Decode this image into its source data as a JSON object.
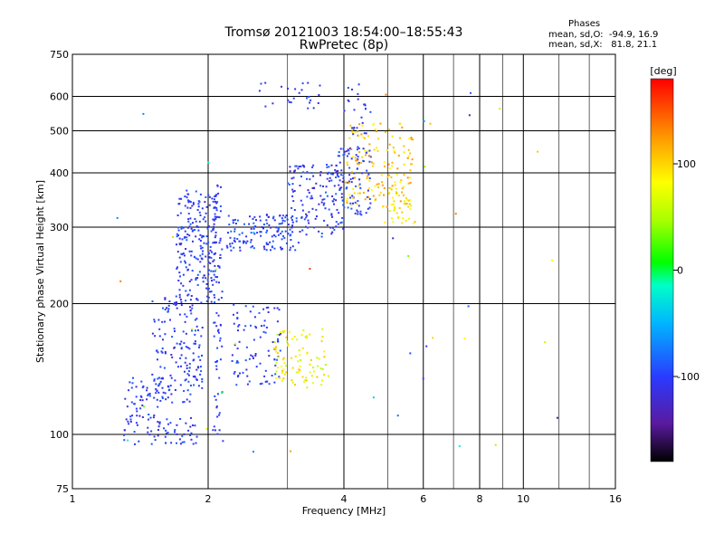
{
  "chart_data": {
    "type": "scatter",
    "title": "Tromsø 20121003 18:54:00–18:55:43",
    "subtitle": "RwPretec (8p)",
    "xlabel": "Frequency [MHz]",
    "ylabel": "Stationary phase Virtual Height [km]",
    "x_scale": "log",
    "y_scale": "log",
    "xlim": [
      1,
      16
    ],
    "ylim": [
      75,
      750
    ],
    "x_ticks": [
      1,
      2,
      4,
      6,
      8,
      10,
      16
    ],
    "x_tick_labels": [
      "1",
      "2",
      "4",
      "6",
      "8",
      "10",
      "16"
    ],
    "y_ticks": [
      75,
      100,
      200,
      300,
      400,
      500,
      600,
      750
    ],
    "y_tick_labels": [
      "75",
      "100",
      "200",
      "300",
      "400",
      "500",
      "600",
      "750"
    ],
    "grid": true,
    "colorbar": {
      "label": "[deg]",
      "ticks": [
        100,
        0,
        -100
      ],
      "tick_labels": [
        "100",
        "0",
        "-100"
      ],
      "range": [
        -180,
        180
      ]
    },
    "stats": {
      "title": "Phases",
      "line_o": "mean, sd,O:  -94.9, 16.9",
      "line_x": "mean, sd,X:   81.8, 21.1"
    },
    "clusters": [
      {
        "f": [
          1.3,
          1.55
        ],
        "h": [
          95,
          135
        ],
        "phase": [
          -120,
          -90
        ],
        "n": 70
      },
      {
        "f": [
          1.5,
          1.95
        ],
        "h": [
          118,
          210
        ],
        "phase": [
          -120,
          -85
        ],
        "n": 170
      },
      {
        "f": [
          1.7,
          2.1
        ],
        "h": [
          200,
          365
        ],
        "phase": [
          -120,
          -85
        ],
        "n": 220
      },
      {
        "f": [
          1.55,
          1.9
        ],
        "h": [
          95,
          110
        ],
        "phase": [
          -120,
          -85
        ],
        "n": 40
      },
      {
        "f": [
          2.05,
          2.15
        ],
        "h": [
          100,
          380
        ],
        "phase": [
          -120,
          -90
        ],
        "n": 80
      },
      {
        "f": [
          2.25,
          2.9
        ],
        "h": [
          130,
          200
        ],
        "phase": [
          -120,
          -80
        ],
        "n": 90
      },
      {
        "f": [
          2.2,
          3.2
        ],
        "h": [
          265,
          320
        ],
        "phase": [
          -120,
          -80
        ],
        "n": 140
      },
      {
        "f": [
          3.0,
          4.0
        ],
        "h": [
          285,
          420
        ],
        "phase": [
          -130,
          -80
        ],
        "n": 140
      },
      {
        "f": [
          3.8,
          4.6
        ],
        "h": [
          320,
          460
        ],
        "phase": [
          -120,
          -80
        ],
        "n": 90
      },
      {
        "f": [
          4.0,
          4.6
        ],
        "h": [
          480,
          650
        ],
        "phase": [
          -120,
          -90
        ],
        "n": 25
      },
      {
        "f": [
          2.6,
          3.6
        ],
        "h": [
          560,
          650
        ],
        "phase": [
          -120,
          -90
        ],
        "n": 25
      },
      {
        "f": [
          2.8,
          3.7
        ],
        "h": [
          128,
          175
        ],
        "phase": [
          50,
          110
        ],
        "n": 90
      },
      {
        "f": [
          4.0,
          5.7
        ],
        "h": [
          330,
          520
        ],
        "phase": [
          80,
          130
        ],
        "n": 150
      },
      {
        "f": [
          5.0,
          5.8
        ],
        "h": [
          300,
          370
        ],
        "phase": [
          60,
          120
        ],
        "n": 30
      },
      {
        "f": [
          1.25,
          12.0
        ],
        "h": [
          90,
          620
        ],
        "phase": [
          -150,
          160
        ],
        "n": 45
      }
    ]
  }
}
